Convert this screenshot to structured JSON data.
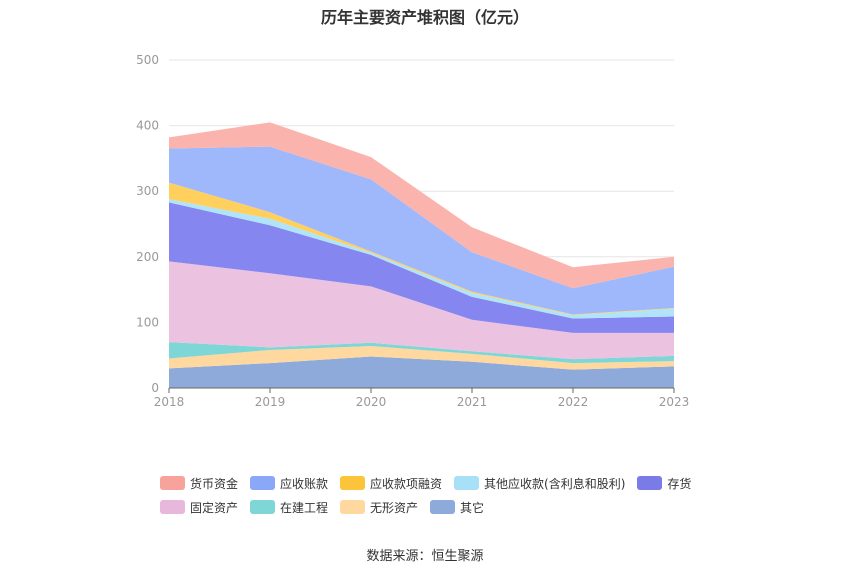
{
  "title": "历年主要资产堆积图（亿元）",
  "source": "数据来源：恒生聚源",
  "chart_data": {
    "type": "area",
    "stacked": true,
    "categories": [
      "2018",
      "2019",
      "2020",
      "2021",
      "2022",
      "2023"
    ],
    "ylim": [
      0,
      500
    ],
    "yticks": [
      "0",
      "100",
      "200",
      "300",
      "400",
      "500"
    ],
    "grid": true,
    "legend_position": "bottom",
    "series": [
      {
        "name": "其它",
        "color": "#8eaadb",
        "values": [
          30,
          38,
          48,
          40,
          28,
          33
        ]
      },
      {
        "name": "无形资产",
        "color": "#ffd8a0",
        "values": [
          15,
          20,
          16,
          12,
          10,
          8
        ]
      },
      {
        "name": "在建工程",
        "color": "#7fd6d6",
        "values": [
          25,
          4,
          5,
          4,
          6,
          8
        ]
      },
      {
        "name": "固定资产",
        "color": "#ebc2e0",
        "values": [
          123,
          113,
          86,
          48,
          40,
          35
        ]
      },
      {
        "name": "存货",
        "color": "#8686f0",
        "values": [
          90,
          73,
          48,
          35,
          22,
          25
        ]
      },
      {
        "name": "其他应收款(含利息和股利)",
        "color": "#b0e4fb",
        "values": [
          5,
          10,
          3,
          6,
          5,
          12
        ]
      },
      {
        "name": "应收款项融资",
        "color": "#ffd05e",
        "values": [
          25,
          10,
          2,
          2,
          1,
          1
        ]
      },
      {
        "name": "应收账款",
        "color": "#9fb8fb",
        "values": [
          52,
          100,
          110,
          60,
          40,
          63
        ]
      },
      {
        "name": "货币资金",
        "color": "#fbb3ad",
        "values": [
          17,
          37,
          34,
          38,
          32,
          15
        ]
      }
    ]
  },
  "legend": {
    "row1": [
      {
        "label": "货币资金",
        "color": "#f7a39c"
      },
      {
        "label": "应收账款",
        "color": "#8aa8f7"
      },
      {
        "label": "应收款项融资",
        "color": "#fcc43a"
      },
      {
        "label": "其他应收款(含利息和股利)",
        "color": "#a8e0f7"
      },
      {
        "label": "存货",
        "color": "#7b7be8"
      }
    ],
    "row2": [
      {
        "label": "固定资产",
        "color": "#e8b8dc"
      },
      {
        "label": "在建工程",
        "color": "#7fd6d6"
      },
      {
        "label": "无形资产",
        "color": "#ffd8a0"
      },
      {
        "label": "其它",
        "color": "#8eaadb"
      }
    ]
  }
}
